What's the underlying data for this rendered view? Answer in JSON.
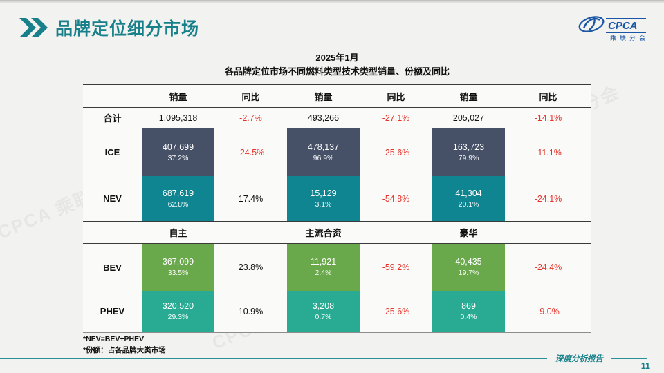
{
  "slide": {
    "title": "品牌定位细分市场",
    "page_number": "11",
    "footer_label": "深度分析报告",
    "watermark_text": "CPCA 乘联分会"
  },
  "logo": {
    "acronym": "CPCA",
    "name_cn": "乘联分会"
  },
  "colors": {
    "accent": "#17808a",
    "negative": "#e8332a",
    "ice": "#465168",
    "nev": "#0f8591",
    "bev": "#6aa84c",
    "phev": "#28ab92"
  },
  "chart_data": {
    "type": "table",
    "title": "2025年1月",
    "subtitle": "各品牌定位市场不同燃料类型技术类型销量、份额及同比",
    "column_headers": [
      "销量",
      "同比",
      "销量",
      "同比",
      "销量",
      "同比"
    ],
    "segment_headers": [
      "自主",
      "主流合资",
      "豪华"
    ],
    "total_row": {
      "label": "合计",
      "cells": [
        {
          "sales": "1,095,318",
          "yoy": "-2.7%"
        },
        {
          "sales": "493,266",
          "yoy": "-27.1%"
        },
        {
          "sales": "205,027",
          "yoy": "-14.1%"
        }
      ]
    },
    "fuel_rows": [
      {
        "label": "ICE",
        "color": "#465168",
        "cells": [
          {
            "sales": "407,699",
            "share": "37.2%",
            "yoy": "-24.5%"
          },
          {
            "sales": "478,137",
            "share": "96.9%",
            "yoy": "-25.6%"
          },
          {
            "sales": "163,723",
            "share": "79.9%",
            "yoy": "-11.1%"
          }
        ]
      },
      {
        "label": "NEV",
        "color": "#0f8591",
        "cells": [
          {
            "sales": "687,619",
            "share": "62.8%",
            "yoy": "17.4%"
          },
          {
            "sales": "15,129",
            "share": "3.1%",
            "yoy": "-54.8%"
          },
          {
            "sales": "41,304",
            "share": "20.1%",
            "yoy": "-24.1%"
          }
        ]
      }
    ],
    "tech_rows": [
      {
        "label": "BEV",
        "color": "#6aa84c",
        "cells": [
          {
            "sales": "367,099",
            "share": "33.5%",
            "yoy": "23.8%"
          },
          {
            "sales": "11,921",
            "share": "2.4%",
            "yoy": "-59.2%"
          },
          {
            "sales": "40,435",
            "share": "19.7%",
            "yoy": "-24.4%"
          }
        ]
      },
      {
        "label": "PHEV",
        "color": "#28ab92",
        "cells": [
          {
            "sales": "320,520",
            "share": "29.3%",
            "yoy": "10.9%"
          },
          {
            "sales": "3,208",
            "share": "0.7%",
            "yoy": "-25.6%"
          },
          {
            "sales": "869",
            "share": "0.4%",
            "yoy": "-9.0%"
          }
        ]
      }
    ],
    "footnotes": [
      "*NEV=BEV+PHEV",
      "*份额：占各品牌大类市场"
    ]
  }
}
